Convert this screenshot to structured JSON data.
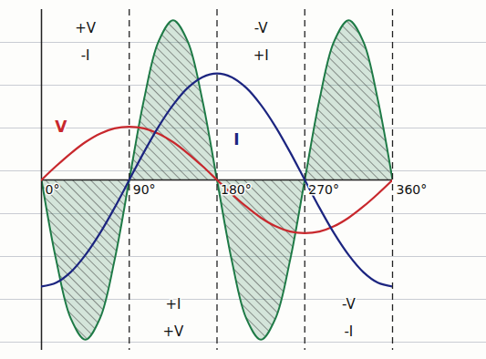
{
  "chart_data": {
    "type": "line",
    "x": [
      0,
      15,
      30,
      45,
      60,
      75,
      90,
      105,
      120,
      135,
      150,
      165,
      180,
      195,
      210,
      225,
      240,
      255,
      270,
      285,
      300,
      315,
      330,
      345,
      360
    ],
    "xlim": [
      0,
      360
    ],
    "xticks": [
      {
        "value": 0,
        "label": "0°"
      },
      {
        "value": 90,
        "label": "90°"
      },
      {
        "value": 180,
        "label": "180°"
      },
      {
        "value": 270,
        "label": "270°"
      },
      {
        "value": 360,
        "label": "360°"
      }
    ],
    "ylim": [
      -3.2,
      3.2
    ],
    "tick_labels": "x",
    "grid": true,
    "series": [
      {
        "type": "area",
        "color": "#1e7a46",
        "values": [
          0,
          -1.5,
          -2.6,
          -3,
          -2.6,
          -1.5,
          0,
          1.5,
          2.6,
          3,
          2.6,
          1.5,
          0,
          -1.5,
          -2.6,
          -3,
          -2.6,
          -1.5,
          0,
          1.5,
          2.6,
          3,
          2.6,
          1.5,
          0
        ]
      },
      {
        "name": "V",
        "color": "#c8282d",
        "values": [
          0,
          0.26,
          0.5,
          0.71,
          0.87,
          0.97,
          1,
          0.97,
          0.87,
          0.71,
          0.5,
          0.26,
          0,
          -0.26,
          -0.5,
          -0.71,
          -0.87,
          -0.97,
          -1,
          -0.97,
          -0.87,
          -0.71,
          -0.5,
          -0.26,
          0
        ]
      },
      {
        "name": "I",
        "color": "#1c2580",
        "values": [
          -2,
          -1.93,
          -1.73,
          -1.41,
          -1,
          -0.52,
          0,
          0.52,
          1,
          1.41,
          1.73,
          1.93,
          2,
          1.93,
          1.73,
          1.41,
          1,
          0.52,
          0,
          -0.52,
          -1,
          -1.41,
          -1.73,
          -1.93,
          -2
        ]
      }
    ],
    "annotations": [
      [
        "+V",
        "-I"
      ],
      [
        "+I",
        "+V"
      ],
      [
        "-V",
        "+I"
      ],
      [
        "-V",
        "-I"
      ]
    ]
  }
}
